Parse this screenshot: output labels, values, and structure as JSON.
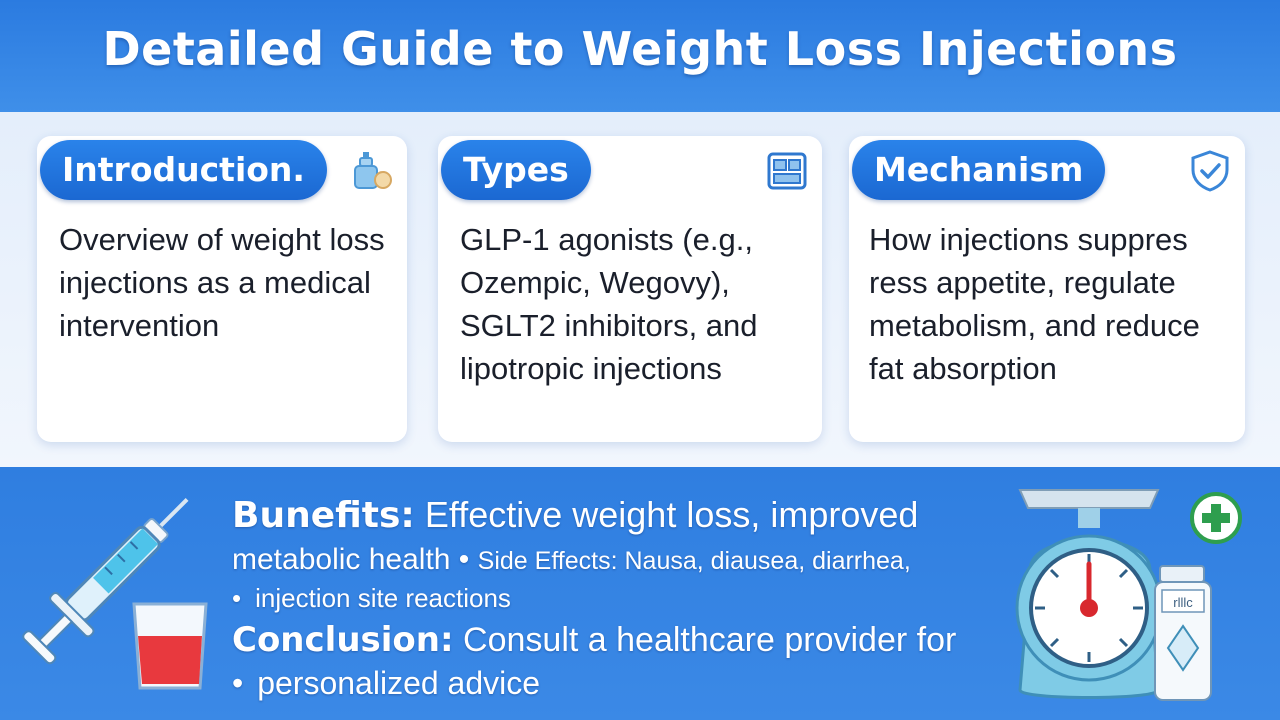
{
  "title": "Detailed Guide to Weight Loss Injections",
  "cards": [
    {
      "heading": "Introduction.",
      "icon": "kit-icon",
      "text": "Overview of weight loss injections as a medical intervention"
    },
    {
      "heading": "Types",
      "icon": "clipboard-icon",
      "text": "GLP-1 agonists (e.g., Ozempic, Wegovy), SGLT2 inhibitors, and lipotropic injections"
    },
    {
      "heading": "Mechanism",
      "icon": "shield-check-icon",
      "text": "How injections suppres ress appetite, regulate metabolism, and reduce fat absorption"
    }
  ],
  "bottom": {
    "benefits_label": "Bunefits:",
    "benefits_text": "Effective weight loss, improved",
    "line2_text": "metabolic health •",
    "side_effects_text": "Side Effects: Nausa, diausea, diarrhea,",
    "bullet": "•",
    "line3_text": "injection site reactions",
    "conclusion_label": "Conclusion:",
    "conclusion_text": "Consult a healthcare provider for",
    "line5_text": "personalized advice"
  },
  "bottle_label": "rlllc"
}
